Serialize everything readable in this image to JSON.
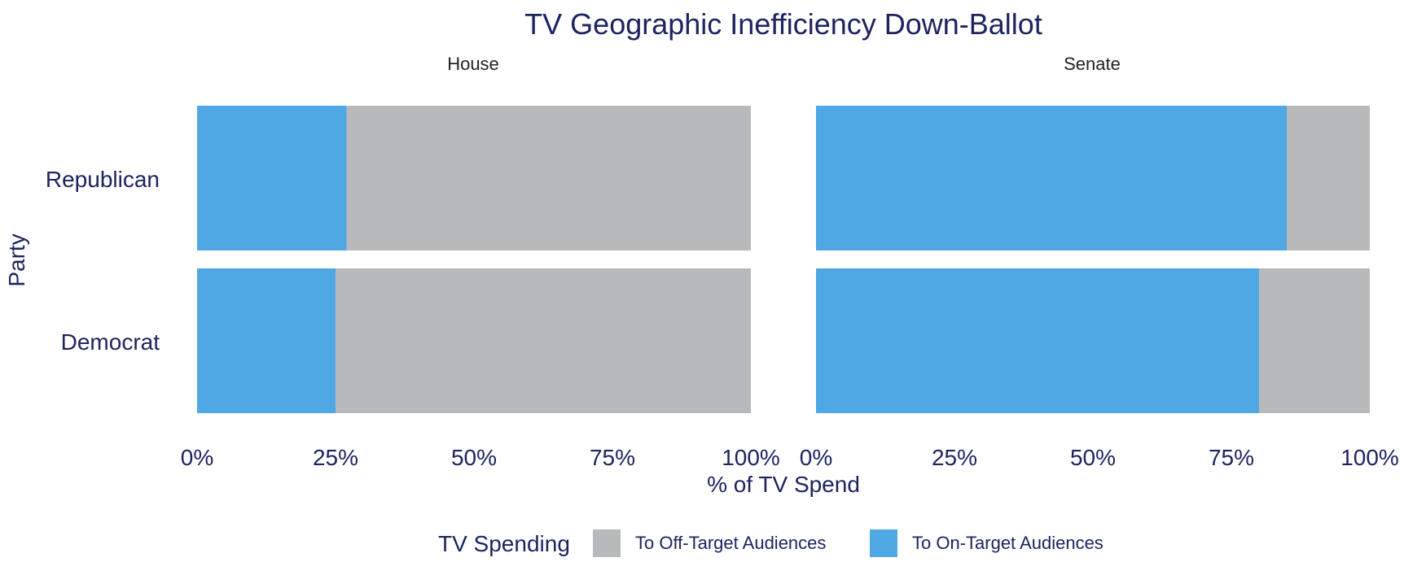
{
  "chart_data": {
    "type": "bar",
    "orientation": "horizontal",
    "stacked": true,
    "normalized": true,
    "title": "TV Geographic Inefficiency Down-Ballot",
    "xlabel": "% of TV Spend",
    "ylabel": "Party",
    "xlim": [
      0,
      100
    ],
    "x_ticks": [
      0,
      25,
      50,
      75,
      100
    ],
    "x_tick_labels": [
      "0%",
      "25%",
      "50%",
      "75%",
      "100%"
    ],
    "categories": [
      "Republican",
      "Democrat"
    ],
    "legend": {
      "title": "TV Spending",
      "placement": "bottom",
      "items": [
        {
          "label": "To Off-Target Audiences",
          "color": "#b8b9bb"
        },
        {
          "label": "To On-Target Audiences",
          "color": "#4fa8e4"
        }
      ]
    },
    "panels": [
      {
        "title": "House",
        "series": [
          {
            "name": "To On-Target Audiences",
            "color": "#4fa8e4",
            "values": [
              27,
              25
            ]
          },
          {
            "name": "To Off-Target Audiences",
            "color": "#b8b9bb",
            "values": [
              73,
              75
            ]
          }
        ]
      },
      {
        "title": "Senate",
        "series": [
          {
            "name": "To On-Target Audiences",
            "color": "#4fa8e4",
            "values": [
              85,
              80
            ]
          },
          {
            "name": "To Off-Target Audiences",
            "color": "#b8b9bb",
            "values": [
              15,
              20
            ]
          }
        ]
      }
    ],
    "grid": false,
    "colors": {
      "text": "#1d2460",
      "on_target": "#4fa8e4",
      "off_target": "#b8b9bb"
    }
  }
}
